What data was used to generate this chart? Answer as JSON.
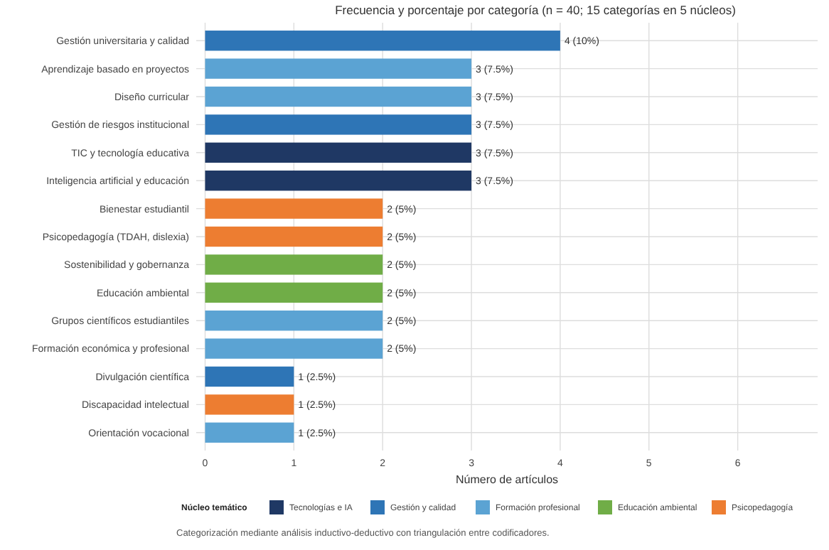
{
  "chart_data": {
    "type": "bar",
    "orientation": "horizontal",
    "title": "Frecuencia y porcentaje por categoría (n = 40; 15 categorías en 5 núcleos)",
    "xlabel": "Número de artículos",
    "legend_title": "Núcleo temático",
    "legend": "bottom",
    "grid": true,
    "categories": [
      "Gestión universitaria y calidad",
      "Aprendizaje basado en proyectos",
      "Diseño curricular",
      "Gestión de riesgos institucional",
      "TIC y tecnología educativa",
      "Inteligencia artificial y educación",
      "Bienestar estudiantil",
      "Psicopedagogía (TDAH, dislexia)",
      "Sostenibilidad y gobernanza",
      "Educación ambiental",
      "Grupos científicos estudiantiles",
      "Formación económica y profesional",
      "Divulgación científica",
      "Discapacidad intelectual",
      "Orientación vocacional"
    ],
    "series": [
      {
        "name": "Tecnologías e IA",
        "color": "#1f3864",
        "values": [
          null,
          null,
          null,
          null,
          3,
          3,
          null,
          null,
          null,
          null,
          null,
          null,
          null,
          null,
          null
        ],
        "value_labels": [
          null,
          null,
          null,
          null,
          "3 (7.5%)",
          "3 (7.5%)",
          null,
          null,
          null,
          null,
          null,
          null,
          null,
          null,
          null
        ]
      },
      {
        "name": "Gestión y calidad",
        "color": "#2e75b6",
        "values": [
          4,
          null,
          null,
          3,
          null,
          null,
          null,
          null,
          null,
          null,
          null,
          null,
          1,
          null,
          null
        ],
        "value_labels": [
          "4 (10%)",
          null,
          null,
          "3 (7.5%)",
          null,
          null,
          null,
          null,
          null,
          null,
          null,
          null,
          "1 (2.5%)",
          null,
          null
        ]
      },
      {
        "name": "Formación profesional",
        "color": "#5ba3d3",
        "values": [
          null,
          3,
          3,
          null,
          null,
          null,
          null,
          null,
          null,
          null,
          2,
          2,
          null,
          null,
          1
        ],
        "value_labels": [
          null,
          "3 (7.5%)",
          "3 (7.5%)",
          null,
          null,
          null,
          null,
          null,
          null,
          null,
          "2 (5%)",
          "2 (5%)",
          null,
          null,
          "1 (2.5%)"
        ]
      },
      {
        "name": "Educación ambiental",
        "color": "#70ad47",
        "values": [
          null,
          null,
          null,
          null,
          null,
          null,
          null,
          null,
          2,
          2,
          null,
          null,
          null,
          null,
          null
        ],
        "value_labels": [
          null,
          null,
          null,
          null,
          null,
          null,
          null,
          null,
          "2 (5%)",
          "2 (5%)",
          null,
          null,
          null,
          null,
          null
        ]
      },
      {
        "name": "Psicopedagogía",
        "color": "#ed7d31",
        "values": [
          null,
          null,
          null,
          null,
          null,
          null,
          2,
          2,
          null,
          null,
          null,
          null,
          null,
          1,
          null
        ],
        "value_labels": [
          null,
          null,
          null,
          null,
          null,
          null,
          "2 (5%)",
          "2 (5%)",
          null,
          null,
          null,
          null,
          null,
          "1 (2.5%)",
          null
        ]
      }
    ],
    "xlim": [
      -0.1,
      6.9
    ],
    "xticks": [
      0,
      1,
      2,
      3,
      4,
      5,
      6
    ],
    "annotations": [
      "Categorización mediante análisis inductivo-deductivo con triangulación entre codificadores."
    ]
  }
}
